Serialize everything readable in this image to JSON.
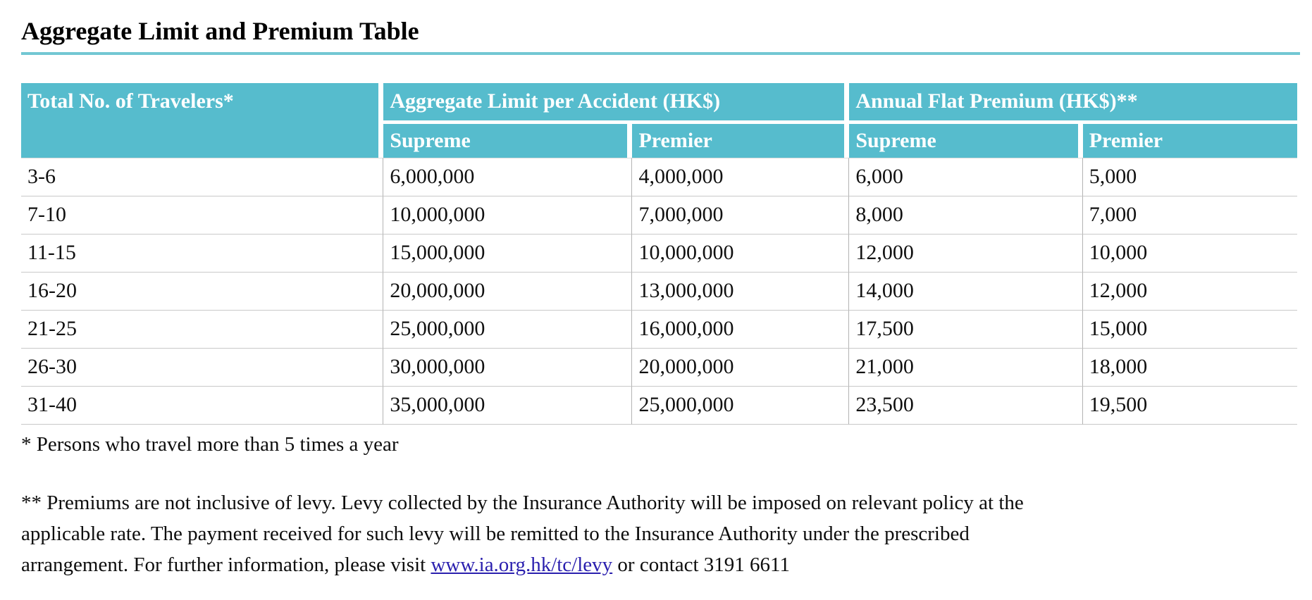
{
  "page": {
    "title": "Aggregate Limit and Premium Table"
  },
  "table": {
    "headers": {
      "travelers": "Total No. of Travelers*",
      "aggregate_limit": "Aggregate Limit per Accident (HK$)",
      "annual_premium": "Annual Flat Premium (HK$)**",
      "sub": [
        "Supreme",
        "Premier",
        "Supreme",
        "Premier"
      ]
    },
    "rows": [
      {
        "travelers": "3-6",
        "agg_supreme": "6,000,000",
        "agg_premier": "4,000,000",
        "prem_supreme": "6,000",
        "prem_premier": "5,000"
      },
      {
        "travelers": "7-10",
        "agg_supreme": "10,000,000",
        "agg_premier": "7,000,000",
        "prem_supreme": "8,000",
        "prem_premier": "7,000"
      },
      {
        "travelers": "11-15",
        "agg_supreme": "15,000,000",
        "agg_premier": "10,000,000",
        "prem_supreme": "12,000",
        "prem_premier": "10,000"
      },
      {
        "travelers": "16-20",
        "agg_supreme": "20,000,000",
        "agg_premier": "13,000,000",
        "prem_supreme": "14,000",
        "prem_premier": "12,000"
      },
      {
        "travelers": "21-25",
        "agg_supreme": "25,000,000",
        "agg_premier": "16,000,000",
        "prem_supreme": "17,500",
        "prem_premier": "15,000"
      },
      {
        "travelers": "26-30",
        "agg_supreme": "30,000,000",
        "agg_premier": "20,000,000",
        "prem_supreme": "21,000",
        "prem_premier": "18,000"
      },
      {
        "travelers": "31-40",
        "agg_supreme": "35,000,000",
        "agg_premier": "25,000,000",
        "prem_supreme": "23,500",
        "prem_premier": "19,500"
      }
    ]
  },
  "footnotes": {
    "travelers_note": "* Persons who travel more than 5 times a year",
    "premium_line1": "** Premiums are not inclusive of levy. Levy collected by the Insurance Authority will be imposed on relevant policy at the",
    "premium_line2": "applicable rate. The payment received for such levy will be remitted to the Insurance Authority under the prescribed",
    "premium_line3_before": "arrangement. For further information, please visit ",
    "levy_link": "www.ia.org.hk/tc/levy",
    "premium_line3_after": " or contact 3191 6611"
  },
  "colors": {
    "header_bg": "#56bccd",
    "underline": "#72c7d3",
    "h_border": "#c9c9c9",
    "v_border": "#b3b3b3",
    "link": "#2a1fae"
  }
}
